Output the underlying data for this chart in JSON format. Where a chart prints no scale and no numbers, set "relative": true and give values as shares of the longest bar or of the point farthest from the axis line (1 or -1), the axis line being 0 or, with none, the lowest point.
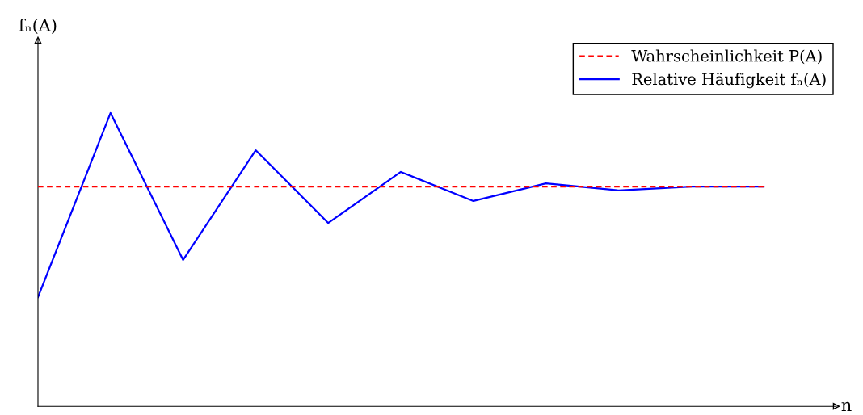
{
  "chart_data": {
    "type": "line",
    "relative": true,
    "xlabel": "n",
    "ylabel": "fₙ(A)",
    "categories": [
      null,
      null,
      null,
      null,
      null,
      null,
      null,
      null,
      null,
      null,
      null
    ],
    "series": [
      {
        "name": "Wahrscheinlichkeit P(A)",
        "color": "#ff0000",
        "line_style": "dashed",
        "values": [
          0.749,
          0.749,
          0.749,
          0.749,
          0.749,
          0.749,
          0.749,
          0.749,
          0.749,
          0.749,
          0.749
        ]
      },
      {
        "name": "Relative Häufigkeit fₙ(A)",
        "color": "#0000ff",
        "line_style": "solid",
        "values": [
          0.372,
          1,
          0.499,
          0.873,
          0.625,
          0.799,
          0.7,
          0.76,
          0.736,
          0.749,
          0.749
        ]
      }
    ],
    "legend": "top right",
    "grid": false,
    "marker": "none"
  }
}
